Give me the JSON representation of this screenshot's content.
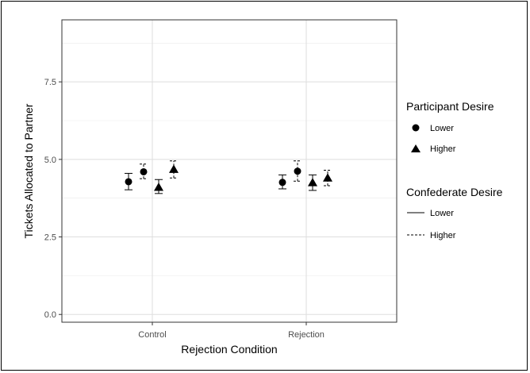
{
  "chart_data": {
    "type": "scatter",
    "xlabel": "Rejection Condition",
    "ylabel": "Tickets Allocated to Partner",
    "categories": [
      "Control",
      "Rejection"
    ],
    "ylim": [
      -0.25,
      9.5
    ],
    "yticks": [
      "0.0",
      "2.5",
      "5.0",
      "7.5"
    ],
    "ytick_values": [
      0,
      2.5,
      5,
      7.5
    ],
    "grid": true,
    "legend_position": "right",
    "legends": [
      {
        "title": "Participant Desire",
        "entries": [
          {
            "label": "Lower",
            "shape": "circle"
          },
          {
            "label": "Higher",
            "shape": "triangle"
          }
        ]
      },
      {
        "title": "Confederate Desire",
        "entries": [
          {
            "label": "Lower",
            "linetype": "solid"
          },
          {
            "label": "Higher",
            "linetype": "dashed"
          }
        ]
      }
    ],
    "points": [
      {
        "category": "Control",
        "participant": "Lower",
        "confederate": "Lower",
        "y": 4.28,
        "ymin": 4.02,
        "ymax": 4.55
      },
      {
        "category": "Control",
        "participant": "Lower",
        "confederate": "Higher",
        "y": 4.6,
        "ymin": 4.38,
        "ymax": 4.85
      },
      {
        "category": "Control",
        "participant": "Higher",
        "confederate": "Lower",
        "y": 4.1,
        "ymin": 3.9,
        "ymax": 4.35
      },
      {
        "category": "Control",
        "participant": "Higher",
        "confederate": "Higher",
        "y": 4.68,
        "ymin": 4.4,
        "ymax": 4.95
      },
      {
        "category": "Rejection",
        "participant": "Lower",
        "confederate": "Lower",
        "y": 4.26,
        "ymin": 4.05,
        "ymax": 4.5
      },
      {
        "category": "Rejection",
        "participant": "Lower",
        "confederate": "Higher",
        "y": 4.62,
        "ymin": 4.3,
        "ymax": 4.95
      },
      {
        "category": "Rejection",
        "participant": "Higher",
        "confederate": "Lower",
        "y": 4.25,
        "ymin": 4.0,
        "ymax": 4.5
      },
      {
        "category": "Rejection",
        "participant": "Higher",
        "confederate": "Higher",
        "y": 4.4,
        "ymin": 4.15,
        "ymax": 4.65
      }
    ]
  }
}
